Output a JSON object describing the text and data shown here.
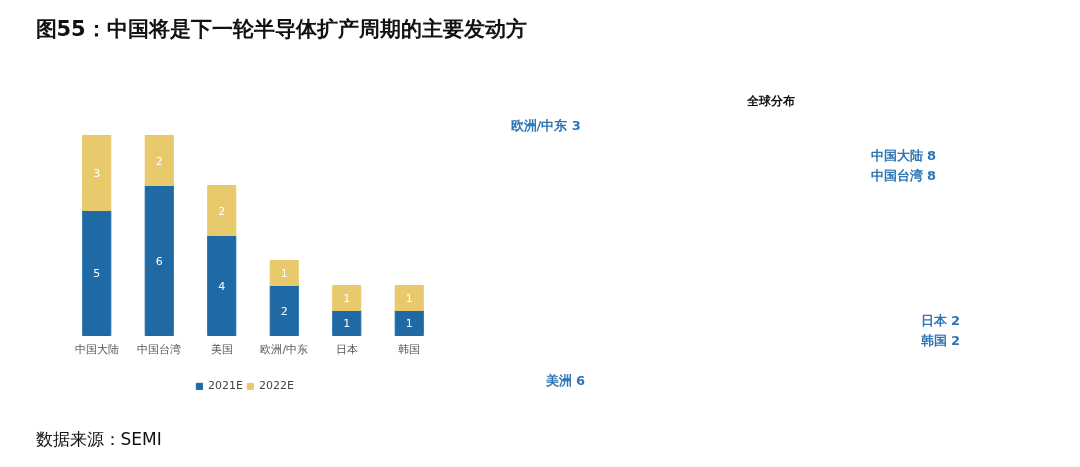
{
  "chart_data": [
    {
      "type": "bar",
      "title": "图55：中国将是下一轮半导体扩产周期的主要发动方",
      "categories": [
        "中国大陆",
        "中国台湾",
        "美国",
        "欧洲/中东",
        "日本",
        "韩国"
      ],
      "stacked": true,
      "data_labels": true,
      "legend": "bottom",
      "tick_labels": "x",
      "series": [
        {
          "name": "2021E",
          "color": "#1f6aa5",
          "values": [
            5,
            6,
            4,
            2,
            1,
            1
          ]
        },
        {
          "name": "2022E",
          "color": "#e8c96b",
          "values": [
            3,
            2,
            2,
            1,
            1,
            1
          ]
        }
      ],
      "annotations": [
        "数据来源：SEMI"
      ]
    },
    {
      "type": "other",
      "title": "全球分布",
      "annotations": [
        "欧洲/中东 3",
        "中国大陆 8",
        "中国台湾 8",
        "日本 2",
        "韩国 2",
        "美洲 6"
      ]
    }
  ]
}
